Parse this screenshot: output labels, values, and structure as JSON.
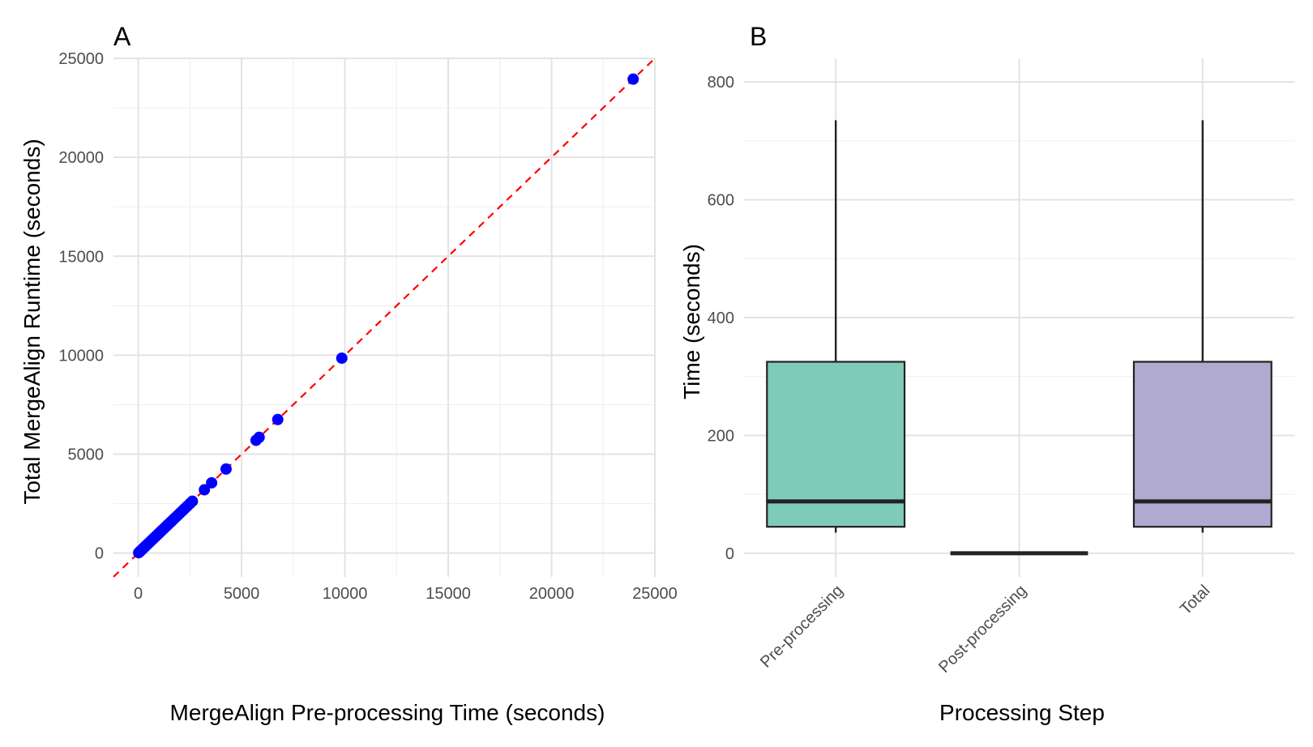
{
  "colors": {
    "point": "#0000ff",
    "identity_line": "#ff0000",
    "box_fill_pre": "#7fcbba",
    "box_fill_total": "#b0aad0",
    "box_stroke": "#222222"
  },
  "chart_data": [
    {
      "type": "scatter",
      "panel_tag": "A",
      "xlabel": "MergeAlign Pre-processing Time (seconds)",
      "ylabel": "Total MergeAlign Runtime (seconds)",
      "xlim": [
        -1200,
        25000
      ],
      "ylim": [
        -1200,
        25000
      ],
      "xticks": [
        "0",
        "5000",
        "10000",
        "15000",
        "20000",
        "25000"
      ],
      "yticks": [
        "0",
        "5000",
        "10000",
        "15000",
        "20000",
        "25000"
      ],
      "grid": true,
      "reference_line": {
        "slope": 1,
        "intercept": 0,
        "style": "dashed"
      },
      "points": [
        [
          20,
          20
        ],
        [
          60,
          60
        ],
        [
          100,
          100
        ],
        [
          150,
          150
        ],
        [
          200,
          200
        ],
        [
          260,
          260
        ],
        [
          320,
          320
        ],
        [
          380,
          380
        ],
        [
          450,
          450
        ],
        [
          520,
          520
        ],
        [
          600,
          600
        ],
        [
          680,
          680
        ],
        [
          760,
          760
        ],
        [
          840,
          840
        ],
        [
          920,
          920
        ],
        [
          1000,
          1000
        ],
        [
          1080,
          1080
        ],
        [
          1160,
          1160
        ],
        [
          1250,
          1250
        ],
        [
          1340,
          1340
        ],
        [
          1430,
          1430
        ],
        [
          1520,
          1520
        ],
        [
          1620,
          1620
        ],
        [
          1720,
          1720
        ],
        [
          1820,
          1820
        ],
        [
          1920,
          1920
        ],
        [
          2030,
          2030
        ],
        [
          2140,
          2140
        ],
        [
          2250,
          2250
        ],
        [
          2370,
          2370
        ],
        [
          2500,
          2500
        ],
        [
          2620,
          2620
        ],
        [
          3200,
          3200
        ],
        [
          3550,
          3550
        ],
        [
          4250,
          4250
        ],
        [
          5700,
          5700
        ],
        [
          5850,
          5850
        ],
        [
          6750,
          6750
        ],
        [
          9850,
          9850
        ],
        [
          23950,
          23950
        ]
      ]
    },
    {
      "type": "box",
      "panel_tag": "B",
      "xlabel": "Processing Step",
      "ylabel": "Time (seconds)",
      "ylim": [
        -40,
        840
      ],
      "yticks": [
        "0",
        "200",
        "400",
        "600",
        "800"
      ],
      "grid": true,
      "categories": [
        "Pre-processing",
        "Post-processing",
        "Total"
      ],
      "boxes": [
        {
          "min": 35,
          "q1": 45,
          "median": 88,
          "q3": 325,
          "max": 735
        },
        {
          "min": 0,
          "q1": 0,
          "median": 0,
          "q3": 0,
          "max": 0
        },
        {
          "min": 35,
          "q1": 45,
          "median": 88,
          "q3": 325,
          "max": 735
        }
      ]
    }
  ]
}
